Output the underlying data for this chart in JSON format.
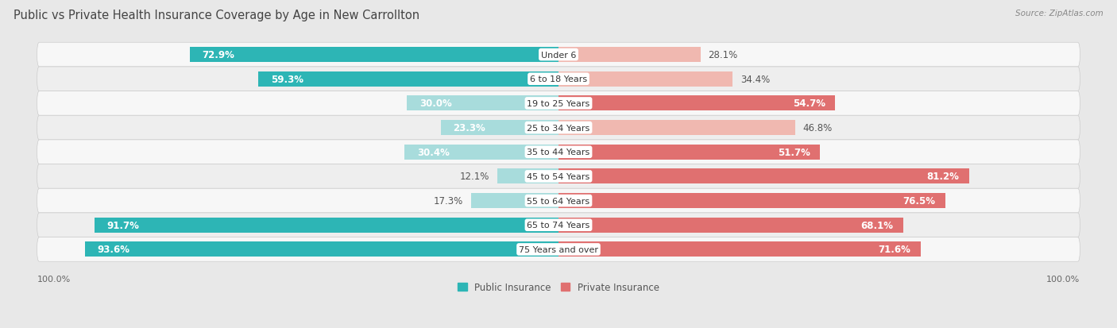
{
  "title": "Public vs Private Health Insurance Coverage by Age in New Carrollton",
  "source": "Source: ZipAtlas.com",
  "categories": [
    "Under 6",
    "6 to 18 Years",
    "19 to 25 Years",
    "25 to 34 Years",
    "35 to 44 Years",
    "45 to 54 Years",
    "55 to 64 Years",
    "65 to 74 Years",
    "75 Years and over"
  ],
  "public_values": [
    72.9,
    59.3,
    30.0,
    23.3,
    30.4,
    12.1,
    17.3,
    91.7,
    93.6
  ],
  "private_values": [
    28.1,
    34.4,
    54.7,
    46.8,
    51.7,
    81.2,
    76.5,
    68.1,
    71.6
  ],
  "public_color_high": "#2db5b5",
  "public_color_low": "#a8dcdc",
  "private_color_high": "#e07070",
  "private_color_low": "#f0b8b0",
  "row_color_odd": "#f7f7f7",
  "row_color_even": "#eeeeee",
  "background_color": "#e8e8e8",
  "title_fontsize": 10.5,
  "label_fontsize": 8.5,
  "value_fontsize": 8.5,
  "bar_height": 0.62,
  "max_value": 100.0,
  "legend_public_label": "Public Insurance",
  "legend_private_label": "Private Insurance",
  "public_threshold": 50,
  "private_threshold": 50
}
